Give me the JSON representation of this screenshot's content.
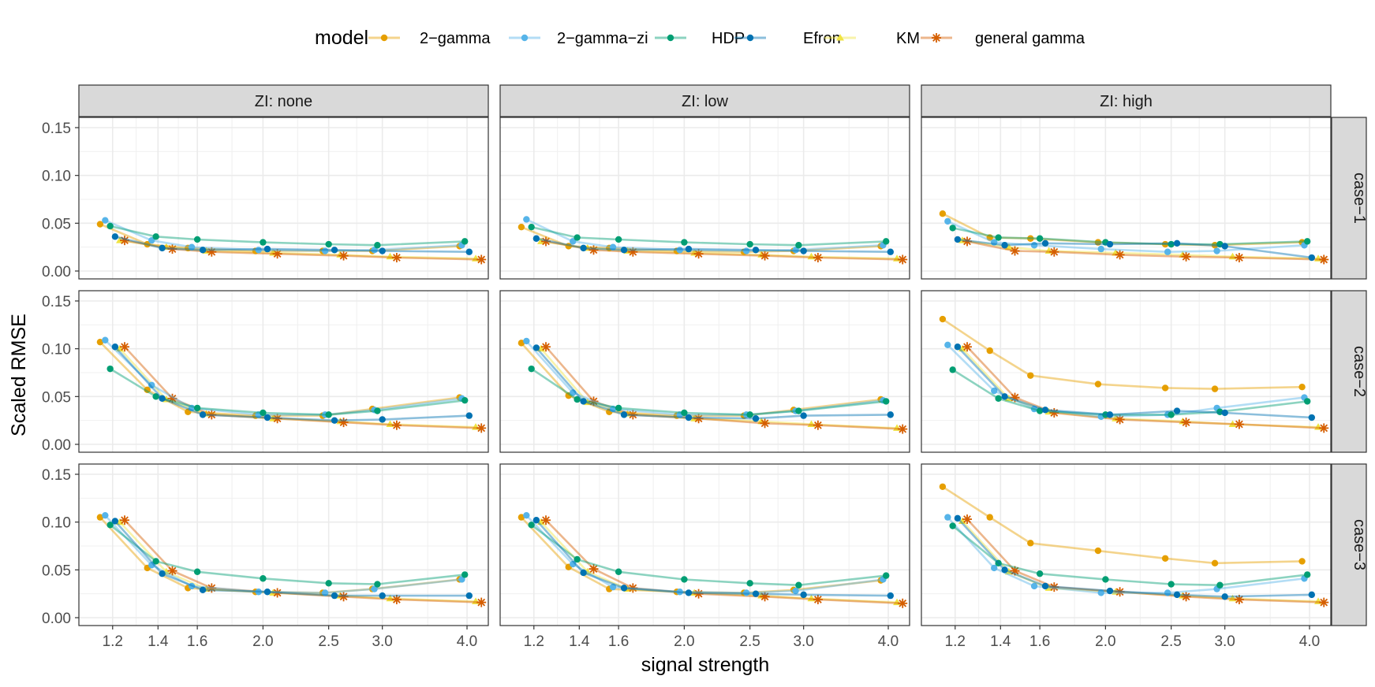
{
  "chart_data": {
    "type": "line",
    "xlabel": "signal strength",
    "ylabel": "Scaled RMSE",
    "x_scale": "log",
    "xlim": [
      1.07,
      4.3
    ],
    "ylim": [
      0,
      0.15
    ],
    "x_ticks": [
      1.2,
      1.4,
      1.6,
      2.0,
      2.5,
      3.0,
      4.0
    ],
    "x_tick_labels": [
      "1.2",
      "1.4",
      "1.6",
      "2.0",
      "2.5",
      "3.0",
      "4.0"
    ],
    "y_ticks": [
      0,
      0.05,
      0.1,
      0.15
    ],
    "y_tick_labels": [
      "0.00",
      "0.05",
      "0.10",
      "0.15"
    ],
    "grid": true,
    "legend": {
      "title": "model",
      "position": "top",
      "entries": [
        {
          "name": "2−gamma",
          "color": "#E69F00",
          "marker": "circle"
        },
        {
          "name": "2−gamma−zi",
          "color": "#56B4E9",
          "marker": "circle"
        },
        {
          "name": "HDP",
          "color": "#009E73",
          "marker": "circle"
        },
        {
          "name": "Efron",
          "color": "#0072B2",
          "marker": "circle"
        },
        {
          "name": "KM",
          "color": "#F0E442",
          "marker": "triangle"
        },
        {
          "name": "general gamma",
          "color": "#D55E00",
          "marker": "asterisk"
        }
      ]
    },
    "x": {
      "2−gamma": [
        1.15,
        1.35,
        1.55,
        1.95,
        2.45,
        2.9,
        3.9
      ],
      "2−gamma−zi": [
        1.17,
        1.37,
        1.57,
        1.97,
        2.47,
        2.92,
        3.93
      ],
      "HDP": [
        1.19,
        1.39,
        1.6,
        2.0,
        2.5,
        2.95,
        3.97
      ],
      "Efron": [
        1.21,
        1.42,
        1.63,
        2.03,
        2.55,
        3.0,
        4.03
      ],
      "KM": [
        1.23,
        1.44,
        1.65,
        2.07,
        2.6,
        3.08,
        4.12
      ],
      "general gamma": [
        1.25,
        1.47,
        1.68,
        2.1,
        2.63,
        3.15,
        4.2
      ]
    },
    "col_facets": [
      "ZI: none",
      "ZI: low",
      "ZI: high"
    ],
    "row_facets": [
      "case−1",
      "case−2",
      "case−3"
    ],
    "panels": [
      [
        {
          "series": [
            {
              "name": "2−gamma",
              "values": [
                0.049,
                0.028,
                0.024,
                0.021,
                0.021,
                0.021,
                0.026
              ]
            },
            {
              "name": "2−gamma−zi",
              "values": [
                0.053,
                0.032,
                0.025,
                0.022,
                0.021,
                0.022,
                0.027
              ]
            },
            {
              "name": "HDP",
              "values": [
                0.047,
                0.036,
                0.033,
                0.03,
                0.028,
                0.027,
                0.031
              ]
            },
            {
              "name": "Efron",
              "values": [
                0.036,
                0.024,
                0.022,
                0.023,
                0.022,
                0.021,
                0.02
              ]
            },
            {
              "name": "KM",
              "values": [
                0.032,
                0.025,
                0.021,
                0.019,
                0.017,
                0.015,
                0.013
              ]
            },
            {
              "name": "general gamma",
              "values": [
                0.032,
                0.023,
                0.02,
                0.018,
                0.016,
                0.014,
                0.012
              ]
            }
          ]
        },
        {
          "series": [
            {
              "name": "2−gamma",
              "values": [
                0.046,
                0.026,
                0.024,
                0.021,
                0.02,
                0.021,
                0.026
              ]
            },
            {
              "name": "2−gamma−zi",
              "values": [
                0.054,
                0.031,
                0.025,
                0.022,
                0.021,
                0.022,
                0.027
              ]
            },
            {
              "name": "HDP",
              "values": [
                0.046,
                0.035,
                0.033,
                0.03,
                0.028,
                0.027,
                0.031
              ]
            },
            {
              "name": "Efron",
              "values": [
                0.034,
                0.024,
                0.022,
                0.023,
                0.022,
                0.021,
                0.02
              ]
            },
            {
              "name": "KM",
              "values": [
                0.031,
                0.024,
                0.021,
                0.019,
                0.017,
                0.015,
                0.013
              ]
            },
            {
              "name": "general gamma",
              "values": [
                0.031,
                0.022,
                0.02,
                0.018,
                0.016,
                0.014,
                0.012
              ]
            }
          ]
        },
        {
          "series": [
            {
              "name": "2−gamma",
              "values": [
                0.06,
                0.035,
                0.034,
                0.03,
                0.028,
                0.027,
                0.03
              ]
            },
            {
              "name": "2−gamma−zi",
              "values": [
                0.052,
                0.03,
                0.027,
                0.023,
                0.02,
                0.021,
                0.027
              ]
            },
            {
              "name": "HDP",
              "values": [
                0.045,
                0.035,
                0.034,
                0.03,
                0.028,
                0.028,
                0.031
              ]
            },
            {
              "name": "Efron",
              "values": [
                0.033,
                0.027,
                0.029,
                0.028,
                0.029,
                0.026,
                0.014
              ]
            },
            {
              "name": "KM",
              "values": [
                0.032,
                0.025,
                0.021,
                0.019,
                0.017,
                0.015,
                0.013
              ]
            },
            {
              "name": "general gamma",
              "values": [
                0.031,
                0.021,
                0.02,
                0.017,
                0.015,
                0.014,
                0.012
              ]
            }
          ]
        }
      ],
      [
        {
          "series": [
            {
              "name": "2−gamma",
              "values": [
                0.107,
                0.057,
                0.034,
                0.03,
                0.03,
                0.037,
                0.049
              ]
            },
            {
              "name": "2−gamma−zi",
              "values": [
                0.109,
                0.062,
                0.038,
                0.031,
                0.031,
                0.036,
                0.048
              ]
            },
            {
              "name": "HDP",
              "values": [
                0.079,
                0.05,
                0.038,
                0.033,
                0.031,
                0.035,
                0.046
              ]
            },
            {
              "name": "Efron",
              "values": [
                0.102,
                0.048,
                0.031,
                0.028,
                0.025,
                0.026,
                0.03
              ]
            },
            {
              "name": "KM",
              "values": [
                0.1,
                0.047,
                0.032,
                0.027,
                0.024,
                0.021,
                0.018
              ]
            },
            {
              "name": "general gamma",
              "values": [
                0.102,
                0.048,
                0.031,
                0.027,
                0.023,
                0.02,
                0.017
              ]
            }
          ]
        },
        {
          "series": [
            {
              "name": "2−gamma",
              "values": [
                0.106,
                0.051,
                0.034,
                0.03,
                0.03,
                0.036,
                0.047
              ]
            },
            {
              "name": "2−gamma−zi",
              "values": [
                0.108,
                0.054,
                0.037,
                0.031,
                0.031,
                0.035,
                0.046
              ]
            },
            {
              "name": "HDP",
              "values": [
                0.079,
                0.047,
                0.038,
                0.033,
                0.031,
                0.035,
                0.045
              ]
            },
            {
              "name": "Efron",
              "values": [
                0.101,
                0.045,
                0.031,
                0.028,
                0.027,
                0.03,
                0.031
              ]
            },
            {
              "name": "KM",
              "values": [
                0.1,
                0.044,
                0.032,
                0.027,
                0.024,
                0.021,
                0.017
              ]
            },
            {
              "name": "general gamma",
              "values": [
                0.102,
                0.045,
                0.031,
                0.027,
                0.022,
                0.02,
                0.016
              ]
            }
          ]
        },
        {
          "series": [
            {
              "name": "2−gamma",
              "values": [
                0.131,
                0.098,
                0.072,
                0.063,
                0.059,
                0.058,
                0.06
              ]
            },
            {
              "name": "2−gamma−zi",
              "values": [
                0.104,
                0.056,
                0.037,
                0.029,
                0.031,
                0.038,
                0.049
              ]
            },
            {
              "name": "HDP",
              "values": [
                0.078,
                0.048,
                0.035,
                0.031,
                0.031,
                0.034,
                0.045
              ]
            },
            {
              "name": "Efron",
              "values": [
                0.102,
                0.05,
                0.036,
                0.031,
                0.035,
                0.033,
                0.028
              ]
            },
            {
              "name": "KM",
              "values": [
                0.1,
                0.048,
                0.034,
                0.027,
                0.024,
                0.021,
                0.018
              ]
            },
            {
              "name": "general gamma",
              "values": [
                0.102,
                0.049,
                0.033,
                0.026,
                0.023,
                0.021,
                0.017
              ]
            }
          ]
        }
      ],
      [
        {
          "series": [
            {
              "name": "2−gamma",
              "values": [
                0.105,
                0.052,
                0.031,
                0.027,
                0.026,
                0.03,
                0.04
              ]
            },
            {
              "name": "2−gamma−zi",
              "values": [
                0.107,
                0.055,
                0.033,
                0.027,
                0.026,
                0.03,
                0.04
              ]
            },
            {
              "name": "HDP",
              "values": [
                0.097,
                0.059,
                0.048,
                0.041,
                0.036,
                0.035,
                0.045
              ]
            },
            {
              "name": "Efron",
              "values": [
                0.101,
                0.046,
                0.029,
                0.027,
                0.023,
                0.023,
                0.023
              ]
            },
            {
              "name": "KM",
              "values": [
                0.1,
                0.048,
                0.03,
                0.026,
                0.023,
                0.02,
                0.017
              ]
            },
            {
              "name": "general gamma",
              "values": [
                0.102,
                0.049,
                0.031,
                0.026,
                0.022,
                0.019,
                0.016
              ]
            }
          ]
        },
        {
          "series": [
            {
              "name": "2−gamma",
              "values": [
                0.105,
                0.053,
                0.03,
                0.027,
                0.026,
                0.029,
                0.039
              ]
            },
            {
              "name": "2−gamma−zi",
              "values": [
                0.107,
                0.056,
                0.032,
                0.027,
                0.026,
                0.028,
                0.04
              ]
            },
            {
              "name": "HDP",
              "values": [
                0.097,
                0.061,
                0.048,
                0.04,
                0.036,
                0.034,
                0.044
              ]
            },
            {
              "name": "Efron",
              "values": [
                0.102,
                0.047,
                0.031,
                0.026,
                0.025,
                0.024,
                0.023
              ]
            },
            {
              "name": "KM",
              "values": [
                0.1,
                0.048,
                0.03,
                0.026,
                0.023,
                0.02,
                0.016
              ]
            },
            {
              "name": "general gamma",
              "values": [
                0.102,
                0.051,
                0.031,
                0.025,
                0.022,
                0.019,
                0.015
              ]
            }
          ]
        },
        {
          "series": [
            {
              "name": "2−gamma",
              "values": [
                0.137,
                0.105,
                0.078,
                0.07,
                0.062,
                0.057,
                0.059
              ]
            },
            {
              "name": "2−gamma−zi",
              "values": [
                0.105,
                0.052,
                0.033,
                0.026,
                0.026,
                0.03,
                0.041
              ]
            },
            {
              "name": "HDP",
              "values": [
                0.096,
                0.057,
                0.046,
                0.04,
                0.035,
                0.034,
                0.045
              ]
            },
            {
              "name": "Efron",
              "values": [
                0.104,
                0.05,
                0.033,
                0.028,
                0.024,
                0.022,
                0.024
              ]
            },
            {
              "name": "KM",
              "values": [
                0.101,
                0.048,
                0.031,
                0.027,
                0.023,
                0.02,
                0.017
              ]
            },
            {
              "name": "general gamma",
              "values": [
                0.103,
                0.049,
                0.032,
                0.027,
                0.022,
                0.019,
                0.016
              ]
            }
          ]
        }
      ]
    ]
  }
}
